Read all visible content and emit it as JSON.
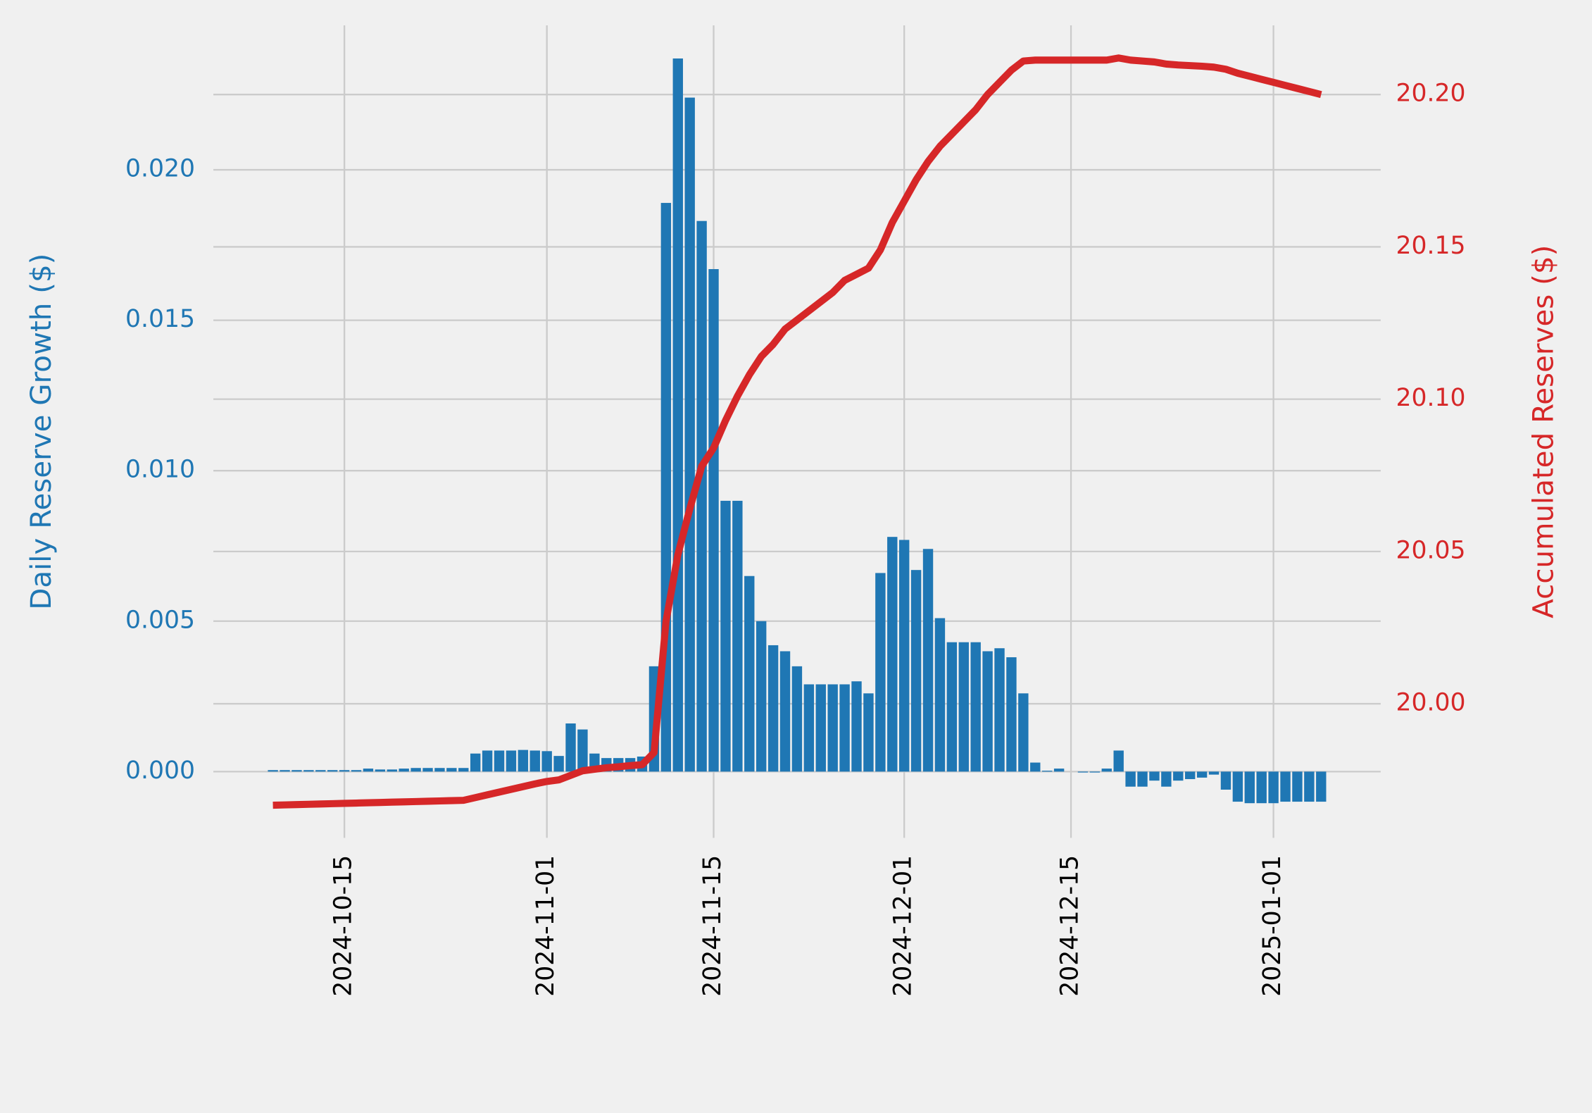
{
  "chart_data": {
    "type": "bar",
    "ylabel": "Daily Reserve Growth ($)",
    "y2label": "Accumulated Reserves ($)",
    "x": [
      "2024-10-09",
      "2024-10-10",
      "2024-10-11",
      "2024-10-12",
      "2024-10-13",
      "2024-10-14",
      "2024-10-15",
      "2024-10-16",
      "2024-10-17",
      "2024-10-18",
      "2024-10-19",
      "2024-10-20",
      "2024-10-21",
      "2024-10-22",
      "2024-10-23",
      "2024-10-24",
      "2024-10-25",
      "2024-10-26",
      "2024-10-27",
      "2024-10-28",
      "2024-10-29",
      "2024-10-30",
      "2024-10-31",
      "2024-11-01",
      "2024-11-02",
      "2024-11-03",
      "2024-11-04",
      "2024-11-05",
      "2024-11-06",
      "2024-11-07",
      "2024-11-08",
      "2024-11-09",
      "2024-11-10",
      "2024-11-11",
      "2024-11-12",
      "2024-11-13",
      "2024-11-14",
      "2024-11-15",
      "2024-11-16",
      "2024-11-17",
      "2024-11-18",
      "2024-11-19",
      "2024-11-20",
      "2024-11-21",
      "2024-11-22",
      "2024-11-23",
      "2024-11-24",
      "2024-11-25",
      "2024-11-26",
      "2024-11-27",
      "2024-11-28",
      "2024-11-29",
      "2024-11-30",
      "2024-12-01",
      "2024-12-02",
      "2024-12-03",
      "2024-12-04",
      "2024-12-05",
      "2024-12-06",
      "2024-12-07",
      "2024-12-08",
      "2024-12-09",
      "2024-12-10",
      "2024-12-11",
      "2024-12-12",
      "2024-12-13",
      "2024-12-14",
      "2024-12-15",
      "2024-12-16",
      "2024-12-17",
      "2024-12-18",
      "2024-12-19",
      "2024-12-20",
      "2024-12-21",
      "2024-12-22",
      "2024-12-23",
      "2024-12-24",
      "2024-12-25",
      "2024-12-26",
      "2024-12-27",
      "2024-12-28",
      "2024-12-29",
      "2024-12-30",
      "2024-12-31",
      "2025-01-01",
      "2025-01-02",
      "2025-01-03",
      "2025-01-04",
      "2025-01-05"
    ],
    "series": [
      {
        "type": "bar",
        "color": "#1f77b4",
        "values": [
          5e-05,
          5e-05,
          5e-05,
          5e-05,
          5e-05,
          5e-05,
          5e-05,
          5e-05,
          0.0001,
          7e-05,
          7e-05,
          0.0001,
          0.00012,
          0.00012,
          0.00012,
          0.00012,
          0.00012,
          0.0006,
          0.0007,
          0.0007,
          0.0007,
          0.00072,
          0.0007,
          0.00068,
          0.00052,
          0.0016,
          0.0014,
          0.0006,
          0.00045,
          0.00045,
          0.00045,
          0.0005,
          0.0035,
          0.0189,
          0.0237,
          0.0224,
          0.0183,
          0.0167,
          0.009,
          0.009,
          0.0065,
          0.005,
          0.0042,
          0.004,
          0.0035,
          0.0029,
          0.0029,
          0.0029,
          0.0029,
          0.003,
          0.0026,
          0.0066,
          0.0078,
          0.0077,
          0.0067,
          0.0074,
          0.0051,
          0.0043,
          0.0043,
          0.0043,
          0.004,
          0.0041,
          0.0038,
          0.0026,
          0.0003,
          3e-05,
          0.0001,
          0,
          -3e-05,
          -3e-05,
          0.0001,
          0.0007,
          -0.0005,
          -0.0005,
          -0.0003,
          -0.0005,
          -0.0003,
          -0.00025,
          -0.0002,
          -0.0001,
          -0.0006,
          -0.001,
          -0.00105,
          -0.00105,
          -0.00105,
          -0.001,
          -0.001,
          -0.001,
          -0.001
        ]
      },
      {
        "type": "line",
        "axis": "y2",
        "color": "#d62728",
        "values": [
          19.9667,
          19.9668,
          19.9669,
          19.967,
          19.9671,
          19.9672,
          19.9673,
          19.9674,
          19.9675,
          19.9676,
          19.9677,
          19.9678,
          19.9679,
          19.968,
          19.9681,
          19.9682,
          19.9683,
          19.9692,
          19.9701,
          19.971,
          19.9719,
          19.9728,
          19.9737,
          19.9745,
          19.975,
          19.9765,
          19.978,
          19.9785,
          19.979,
          19.9793,
          19.9797,
          19.98,
          19.984,
          20.027,
          20.049,
          20.064,
          20.078,
          20.084,
          20.093,
          20.101,
          20.108,
          20.114,
          20.118,
          20.123,
          20.126,
          20.129,
          20.132,
          20.135,
          20.139,
          20.141,
          20.143,
          20.149,
          20.158,
          20.165,
          20.172,
          20.178,
          20.183,
          20.187,
          20.191,
          20.195,
          20.2,
          20.204,
          20.208,
          20.211,
          20.2113,
          20.2113,
          20.2113,
          20.2113,
          20.2113,
          20.2113,
          20.2113,
          20.212,
          20.2113,
          20.211,
          20.2107,
          20.21,
          20.2097,
          20.2095,
          20.2093,
          20.209,
          20.2083,
          20.207,
          20.206,
          20.205,
          20.204,
          20.203,
          20.202,
          20.201,
          20.2
        ]
      }
    ],
    "xlim": [
      "2024-10-04",
      "2025-01-10"
    ],
    "xticks": [
      "2024-10-15",
      "2024-11-01",
      "2024-11-15",
      "2024-12-01",
      "2024-12-15",
      "2025-01-01"
    ],
    "ylim": [
      -0.0022,
      0.0248
    ],
    "yticks": [
      {
        "value": 0,
        "label": "0.000"
      },
      {
        "value": 0.005,
        "label": "0.005"
      },
      {
        "value": 0.01,
        "label": "0.010"
      },
      {
        "value": 0.015,
        "label": "0.015"
      },
      {
        "value": 0.02,
        "label": "0.020"
      }
    ],
    "y2lim": [
      19.956,
      20.2227
    ],
    "y2ticks": [
      {
        "value": 20,
        "label": "20.00"
      },
      20.05,
      {
        "value": 20.1,
        "label": "20.10"
      },
      20.15,
      {
        "value": 20.2,
        "label": "20.20"
      }
    ],
    "grid": true
  }
}
